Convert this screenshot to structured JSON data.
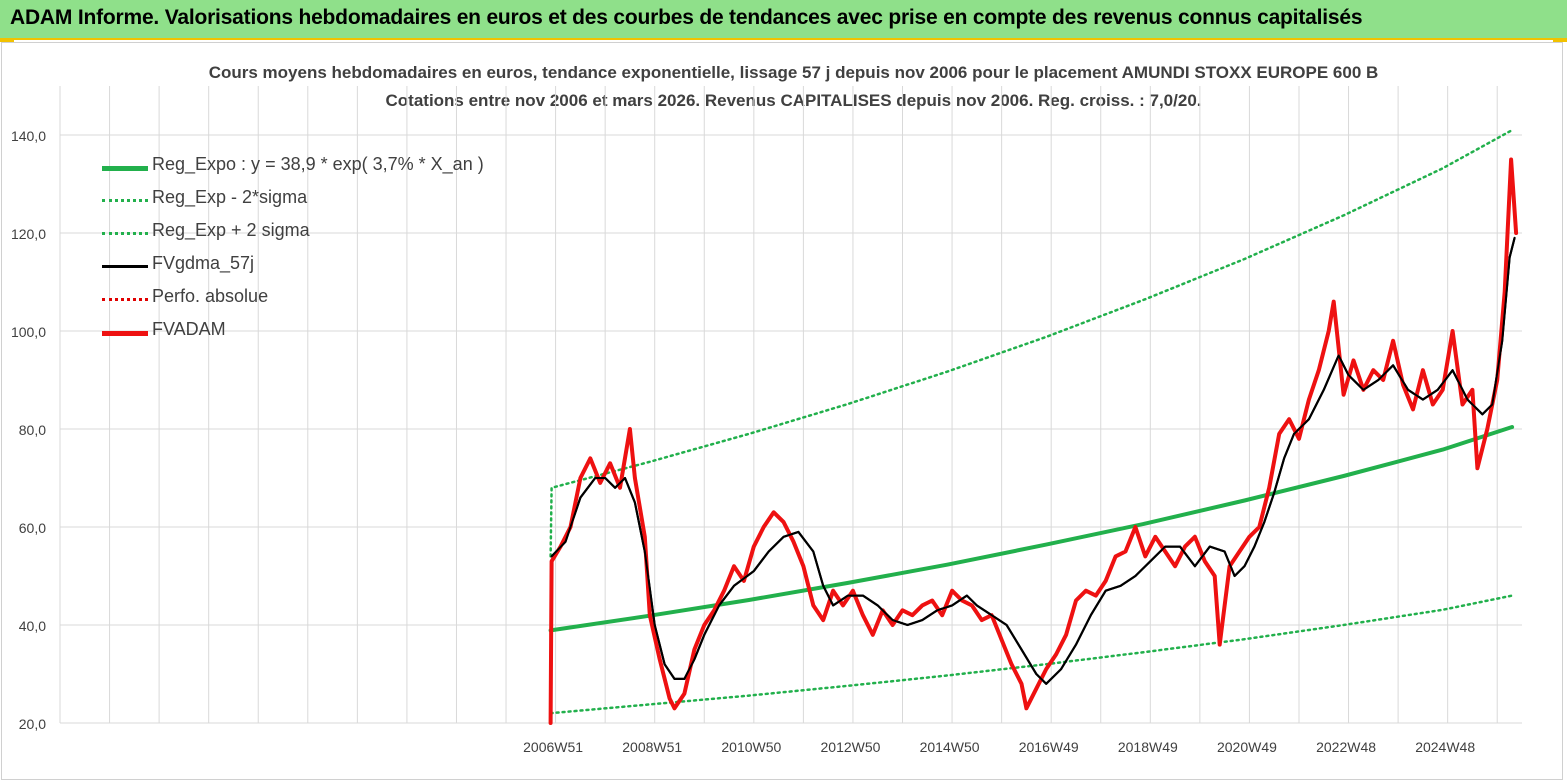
{
  "banner": {
    "title": "ADAM Informe. Valorisations hebdomadaires en euros et des courbes de tendances avec prise en compte des revenus connus capitalisés"
  },
  "colors": {
    "banner_bg": "#8fe08a",
    "banner_border": "#f2c200",
    "reg_expo": "#22b04c",
    "reg_band": "#22b04c",
    "fvgdma": "#000000",
    "perfo": "#e00000",
    "fvadam": "#ee1111",
    "grid": "#d9d9d9",
    "text": "#404040"
  },
  "chart_data": {
    "type": "line",
    "title": "Cours moyens hebdomadaires en euros, tendance exponentielle, lissage 57 j depuis nov 2006 pour le placement AMUNDI STOXX EUROPE 600 B",
    "subtitle": "Cotations entre nov 2006 et mars 2026. Revenus CAPITALISES depuis nov 2006. Reg. croiss. : 7,0/20.",
    "xlabel": "",
    "ylabel": "",
    "x_ticks": [
      "2006W51",
      "2008W51",
      "2010W50",
      "2012W50",
      "2014W50",
      "2016W49",
      "2018W49",
      "2020W49",
      "2022W48",
      "2024W48"
    ],
    "y_ticks": [
      "20,0",
      "40,0",
      "60,0",
      "80,0",
      "100,0",
      "120,0",
      "140,0"
    ],
    "ylim": [
      20,
      150
    ],
    "xlim": [
      1997.0,
      2026.5
    ],
    "grid": true,
    "legend_position": "top-left",
    "series": [
      {
        "name": "Reg_Expo : y = 38,9 * exp( 3,7% *  X_an )",
        "style": "solid-thick",
        "color_key": "reg_expo",
        "points": [
          [
            2006.9,
            38.9
          ],
          [
            2008.9,
            41.9
          ],
          [
            2010.9,
            45.1
          ],
          [
            2012.9,
            48.6
          ],
          [
            2014.9,
            52.3
          ],
          [
            2016.9,
            56.4
          ],
          [
            2018.9,
            60.7
          ],
          [
            2020.9,
            65.4
          ],
          [
            2022.9,
            70.4
          ],
          [
            2024.9,
            75.8
          ],
          [
            2026.3,
            80.4
          ]
        ]
      },
      {
        "name": "Reg_Exp - 2*sigma",
        "style": "dotted",
        "color_key": "reg_band",
        "points": [
          [
            2006.9,
            22.0
          ],
          [
            2008.9,
            23.8
          ],
          [
            2010.9,
            25.6
          ],
          [
            2012.9,
            27.6
          ],
          [
            2014.9,
            29.7
          ],
          [
            2016.9,
            32.0
          ],
          [
            2018.9,
            34.5
          ],
          [
            2020.9,
            37.1
          ],
          [
            2022.9,
            40.0
          ],
          [
            2024.9,
            43.1
          ],
          [
            2026.3,
            46.0
          ]
        ]
      },
      {
        "name": "Reg_Exp + 2 sigma",
        "style": "dotted",
        "color_key": "reg_band",
        "points": [
          [
            2006.9,
            54.0
          ],
          [
            2006.92,
            68.0
          ],
          [
            2008.9,
            73.3
          ],
          [
            2010.9,
            79.0
          ],
          [
            2012.9,
            85.1
          ],
          [
            2014.9,
            91.7
          ],
          [
            2016.9,
            98.8
          ],
          [
            2018.9,
            106.5
          ],
          [
            2020.9,
            114.7
          ],
          [
            2022.9,
            123.6
          ],
          [
            2024.9,
            133.2
          ],
          [
            2026.3,
            141.0
          ]
        ]
      },
      {
        "name": "FVgdma_57j",
        "style": "solid",
        "color_key": "fvgdma",
        "points": [
          [
            2006.92,
            54
          ],
          [
            2007.2,
            57
          ],
          [
            2007.5,
            66
          ],
          [
            2007.8,
            70
          ],
          [
            2008.0,
            70
          ],
          [
            2008.2,
            68
          ],
          [
            2008.4,
            70
          ],
          [
            2008.6,
            65
          ],
          [
            2008.8,
            55
          ],
          [
            2009.0,
            40
          ],
          [
            2009.2,
            32
          ],
          [
            2009.4,
            29
          ],
          [
            2009.6,
            29
          ],
          [
            2009.8,
            33
          ],
          [
            2010.0,
            38
          ],
          [
            2010.3,
            44
          ],
          [
            2010.6,
            48
          ],
          [
            2011.0,
            51
          ],
          [
            2011.3,
            55
          ],
          [
            2011.6,
            58
          ],
          [
            2011.9,
            59
          ],
          [
            2012.2,
            55
          ],
          [
            2012.4,
            48
          ],
          [
            2012.6,
            44
          ],
          [
            2012.9,
            46
          ],
          [
            2013.2,
            46
          ],
          [
            2013.5,
            44
          ],
          [
            2013.8,
            41
          ],
          [
            2014.1,
            40
          ],
          [
            2014.4,
            41
          ],
          [
            2014.7,
            43
          ],
          [
            2015.0,
            44
          ],
          [
            2015.3,
            46
          ],
          [
            2015.5,
            44
          ],
          [
            2015.8,
            42
          ],
          [
            2016.1,
            40
          ],
          [
            2016.4,
            35
          ],
          [
            2016.7,
            30
          ],
          [
            2016.9,
            28
          ],
          [
            2017.2,
            31
          ],
          [
            2017.5,
            36
          ],
          [
            2017.8,
            42
          ],
          [
            2018.1,
            47
          ],
          [
            2018.4,
            48
          ],
          [
            2018.7,
            50
          ],
          [
            2019.0,
            53
          ],
          [
            2019.3,
            56
          ],
          [
            2019.6,
            56
          ],
          [
            2019.9,
            52
          ],
          [
            2020.2,
            56
          ],
          [
            2020.5,
            55
          ],
          [
            2020.7,
            50
          ],
          [
            2020.9,
            52
          ],
          [
            2021.1,
            56
          ],
          [
            2021.3,
            61
          ],
          [
            2021.5,
            67
          ],
          [
            2021.7,
            74
          ],
          [
            2021.9,
            79
          ],
          [
            2022.2,
            82
          ],
          [
            2022.5,
            88
          ],
          [
            2022.8,
            95
          ],
          [
            2023.0,
            91
          ],
          [
            2023.3,
            88
          ],
          [
            2023.6,
            90
          ],
          [
            2023.9,
            93
          ],
          [
            2024.2,
            88
          ],
          [
            2024.5,
            86
          ],
          [
            2024.8,
            88
          ],
          [
            2025.1,
            92
          ],
          [
            2025.4,
            86
          ],
          [
            2025.7,
            83
          ],
          [
            2025.9,
            85
          ],
          [
            2026.1,
            98
          ],
          [
            2026.25,
            115
          ],
          [
            2026.35,
            119
          ]
        ]
      },
      {
        "name": "Perfo. absolue",
        "style": "dotted",
        "color_key": "perfo",
        "points": []
      },
      {
        "name": "FVADAM",
        "style": "solid-thick",
        "color_key": "fvadam",
        "points": [
          [
            2006.9,
            20
          ],
          [
            2006.92,
            53
          ],
          [
            2007.1,
            56
          ],
          [
            2007.3,
            60
          ],
          [
            2007.5,
            70
          ],
          [
            2007.7,
            74
          ],
          [
            2007.9,
            69
          ],
          [
            2008.1,
            73
          ],
          [
            2008.3,
            68
          ],
          [
            2008.5,
            80
          ],
          [
            2008.6,
            70
          ],
          [
            2008.8,
            58
          ],
          [
            2008.9,
            42
          ],
          [
            2009.1,
            33
          ],
          [
            2009.3,
            25
          ],
          [
            2009.4,
            23
          ],
          [
            2009.6,
            26
          ],
          [
            2009.8,
            35
          ],
          [
            2010.0,
            40
          ],
          [
            2010.2,
            43
          ],
          [
            2010.4,
            47
          ],
          [
            2010.6,
            52
          ],
          [
            2010.8,
            49
          ],
          [
            2011.0,
            56
          ],
          [
            2011.2,
            60
          ],
          [
            2011.4,
            63
          ],
          [
            2011.6,
            61
          ],
          [
            2011.8,
            57
          ],
          [
            2012.0,
            52
          ],
          [
            2012.2,
            44
          ],
          [
            2012.4,
            41
          ],
          [
            2012.6,
            47
          ],
          [
            2012.8,
            44
          ],
          [
            2013.0,
            47
          ],
          [
            2013.2,
            42
          ],
          [
            2013.4,
            38
          ],
          [
            2013.6,
            43
          ],
          [
            2013.8,
            40
          ],
          [
            2014.0,
            43
          ],
          [
            2014.2,
            42
          ],
          [
            2014.4,
            44
          ],
          [
            2014.6,
            45
          ],
          [
            2014.8,
            42
          ],
          [
            2015.0,
            47
          ],
          [
            2015.2,
            45
          ],
          [
            2015.4,
            44
          ],
          [
            2015.6,
            41
          ],
          [
            2015.8,
            42
          ],
          [
            2016.0,
            37
          ],
          [
            2016.2,
            32
          ],
          [
            2016.4,
            28
          ],
          [
            2016.5,
            23
          ],
          [
            2016.7,
            27
          ],
          [
            2016.9,
            31
          ],
          [
            2017.1,
            34
          ],
          [
            2017.3,
            38
          ],
          [
            2017.5,
            45
          ],
          [
            2017.7,
            47
          ],
          [
            2017.9,
            46
          ],
          [
            2018.1,
            49
          ],
          [
            2018.3,
            54
          ],
          [
            2018.5,
            55
          ],
          [
            2018.7,
            60
          ],
          [
            2018.9,
            54
          ],
          [
            2019.1,
            58
          ],
          [
            2019.3,
            55
          ],
          [
            2019.5,
            52
          ],
          [
            2019.7,
            56
          ],
          [
            2019.9,
            58
          ],
          [
            2020.1,
            53
          ],
          [
            2020.3,
            50
          ],
          [
            2020.4,
            36
          ],
          [
            2020.6,
            52
          ],
          [
            2020.8,
            55
          ],
          [
            2021.0,
            58
          ],
          [
            2021.2,
            60
          ],
          [
            2021.4,
            68
          ],
          [
            2021.6,
            79
          ],
          [
            2021.8,
            82
          ],
          [
            2022.0,
            78
          ],
          [
            2022.2,
            86
          ],
          [
            2022.4,
            92
          ],
          [
            2022.6,
            100
          ],
          [
            2022.7,
            106
          ],
          [
            2022.9,
            87
          ],
          [
            2023.1,
            94
          ],
          [
            2023.3,
            88
          ],
          [
            2023.5,
            92
          ],
          [
            2023.7,
            90
          ],
          [
            2023.9,
            98
          ],
          [
            2024.1,
            89
          ],
          [
            2024.3,
            84
          ],
          [
            2024.5,
            92
          ],
          [
            2024.7,
            85
          ],
          [
            2024.9,
            88
          ],
          [
            2025.1,
            100
          ],
          [
            2025.3,
            85
          ],
          [
            2025.5,
            88
          ],
          [
            2025.6,
            72
          ],
          [
            2025.8,
            80
          ],
          [
            2026.0,
            90
          ],
          [
            2026.15,
            108
          ],
          [
            2026.28,
            135
          ],
          [
            2026.38,
            120
          ]
        ]
      }
    ]
  }
}
